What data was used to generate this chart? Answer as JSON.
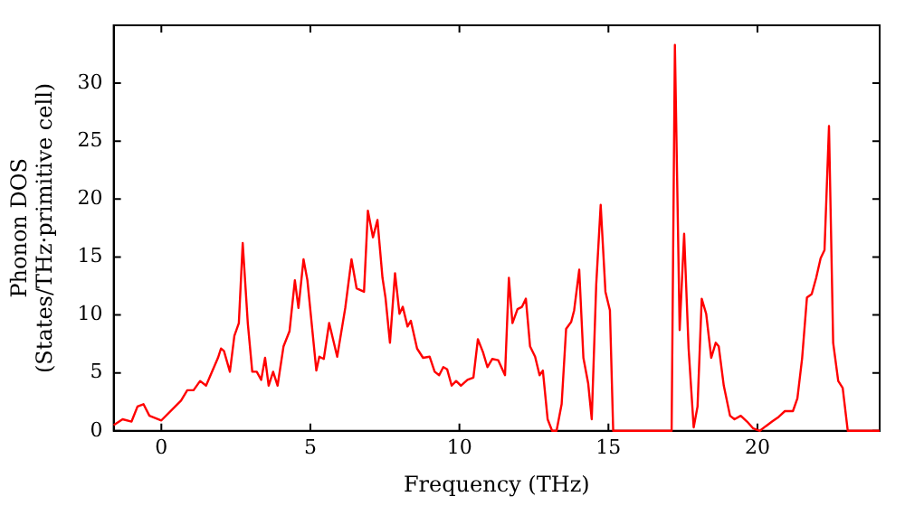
{
  "chart_data": {
    "type": "line",
    "xlabel": "Frequency (THz)",
    "ylabel": "Phonon DOS\n(States/THz·primitive cell)",
    "xlim": [
      -1.6,
      24.1
    ],
    "ylim": [
      0,
      35
    ],
    "xticks": [
      0,
      5,
      10,
      15,
      20
    ],
    "yticks": [
      0,
      5,
      10,
      15,
      20,
      25,
      30
    ],
    "grid": false,
    "legend": false,
    "marker": "none",
    "line_style": "solid",
    "x": [
      -1.6,
      -1.3,
      -1.0,
      -0.8,
      -0.6,
      -0.4,
      0,
      0.66,
      0.87,
      1.08,
      1.3,
      1.5,
      1.9,
      2.0,
      2.1,
      2.3,
      2.45,
      2.6,
      2.73,
      2.9,
      3.05,
      3.2,
      3.35,
      3.48,
      3.6,
      3.75,
      3.9,
      4.1,
      4.3,
      4.48,
      4.6,
      4.77,
      4.9,
      5.2,
      5.3,
      5.45,
      5.63,
      5.9,
      6.17,
      6.38,
      6.55,
      6.8,
      6.93,
      7.1,
      7.25,
      7.42,
      7.52,
      7.67,
      7.84,
      7.99,
      8.1,
      8.26,
      8.37,
      8.58,
      8.78,
      9.0,
      9.17,
      9.32,
      9.46,
      9.59,
      9.74,
      9.89,
      10.05,
      10.27,
      10.47,
      10.62,
      10.79,
      10.94,
      11.1,
      11.3,
      11.53,
      11.66,
      11.78,
      11.95,
      12.1,
      12.23,
      12.37,
      12.54,
      12.69,
      12.8,
      12.96,
      13.11,
      13.26,
      13.43,
      13.58,
      13.75,
      13.85,
      14.02,
      14.16,
      14.32,
      14.44,
      14.59,
      14.74,
      14.9,
      15.05,
      15.16,
      17.12,
      17.23,
      17.39,
      17.54,
      17.69,
      17.86,
      17.99,
      18.13,
      18.28,
      18.45,
      18.6,
      18.7,
      18.87,
      19.08,
      19.23,
      19.44,
      19.65,
      19.86,
      20.08,
      20.28,
      20.49,
      20.71,
      20.92,
      21.19,
      21.34,
      21.5,
      21.66,
      21.82,
      21.97,
      22.12,
      22.25,
      22.4,
      22.54,
      22.71,
      22.86,
      23.03,
      24.1
    ],
    "series": [
      {
        "color": "#ff0000",
        "values": [
          0.5,
          1.0,
          0.8,
          2.1,
          2.3,
          1.3,
          0.9,
          2.6,
          3.5,
          3.5,
          4.3,
          3.9,
          6.3,
          7.1,
          6.9,
          5.1,
          8.2,
          9.3,
          16.2,
          9.3,
          5.1,
          5.1,
          4.4,
          6.3,
          3.9,
          5.1,
          3.9,
          7.3,
          8.6,
          13.0,
          10.6,
          14.8,
          13.0,
          5.2,
          6.4,
          6.2,
          9.3,
          6.4,
          10.6,
          14.8,
          12.3,
          12.0,
          19.0,
          16.7,
          18.2,
          13.2,
          11.5,
          7.6,
          13.6,
          10.1,
          10.7,
          9.0,
          9.5,
          7.1,
          6.3,
          6.4,
          5.1,
          4.8,
          5.5,
          5.3,
          3.9,
          4.3,
          3.9,
          4.4,
          4.6,
          7.9,
          6.8,
          5.5,
          6.2,
          6.1,
          4.8,
          13.2,
          9.3,
          10.5,
          10.7,
          11.4,
          7.3,
          6.4,
          4.8,
          5.2,
          1.0,
          0,
          0,
          2.3,
          8.8,
          9.4,
          10.4,
          13.9,
          6.3,
          4.1,
          1.0,
          12.6,
          19.5,
          12.0,
          10.4,
          0,
          0,
          33.3,
          8.7,
          17.0,
          7.1,
          0.3,
          2.1,
          11.4,
          10.1,
          6.3,
          7.6,
          7.3,
          3.9,
          1.3,
          1.0,
          1.3,
          0.8,
          0.2,
          0,
          0.4,
          0.8,
          1.2,
          1.7,
          1.7,
          2.8,
          6.3,
          11.5,
          11.8,
          13.2,
          14.9,
          15.6,
          26.3,
          7.6,
          4.3,
          3.7,
          0,
          0
        ]
      }
    ]
  }
}
